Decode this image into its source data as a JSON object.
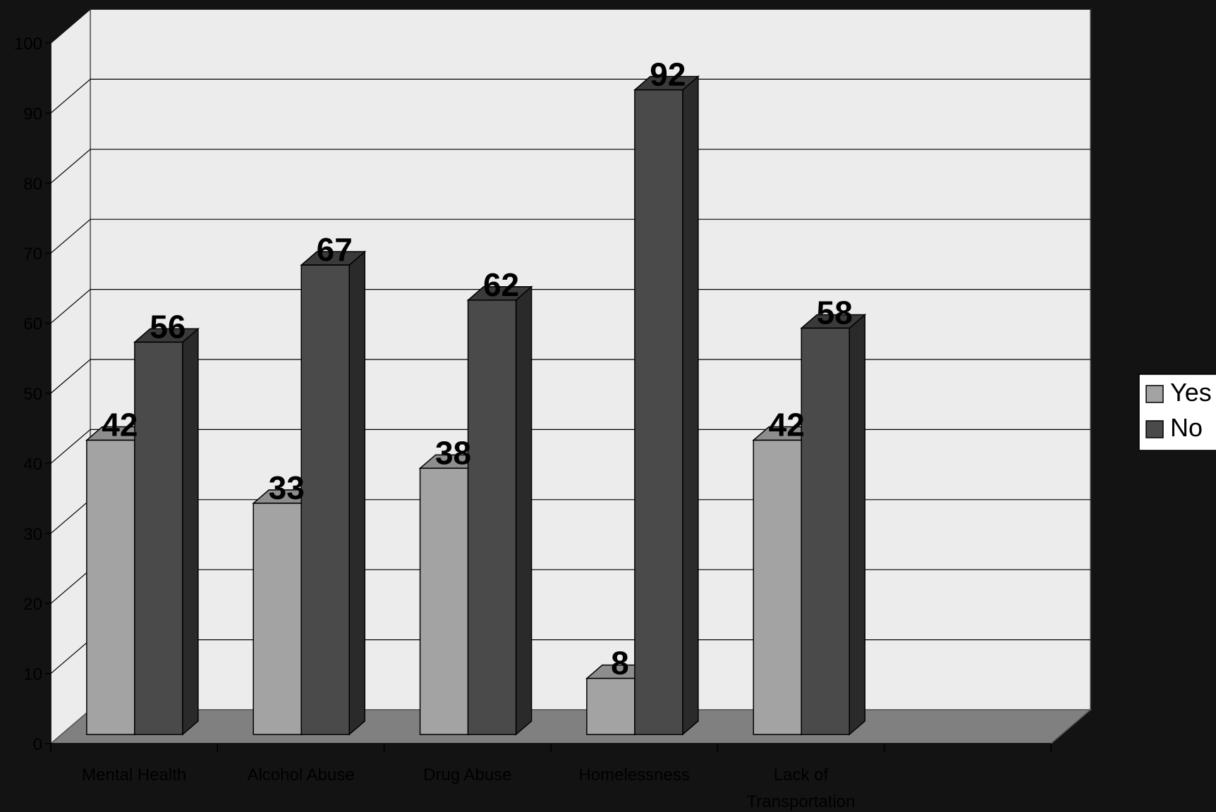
{
  "chart_data": {
    "type": "bar",
    "categories": [
      "Mental Health",
      "Alcohol Abuse",
      "Drug Abuse",
      "Homelessness",
      "Lack of Transportation"
    ],
    "series": [
      {
        "name": "Yes",
        "values": [
          42,
          33,
          38,
          8,
          42
        ]
      },
      {
        "name": "No",
        "values": [
          56,
          67,
          62,
          92,
          58
        ]
      }
    ],
    "title": "",
    "xlabel": "",
    "ylabel": "",
    "ylim": [
      0,
      100
    ],
    "yticks": [
      0,
      10,
      20,
      30,
      40,
      50,
      60,
      70,
      80,
      90,
      100
    ],
    "grid": true,
    "legend_position": "right",
    "style": "3d-clustered-column",
    "colors": {
      "background": "#131313",
      "back_wall": "#ececec",
      "floor": "#808080",
      "yes": "#a3a3a3",
      "no": "#4a4a4a",
      "legend_box": "#ffffff"
    }
  }
}
